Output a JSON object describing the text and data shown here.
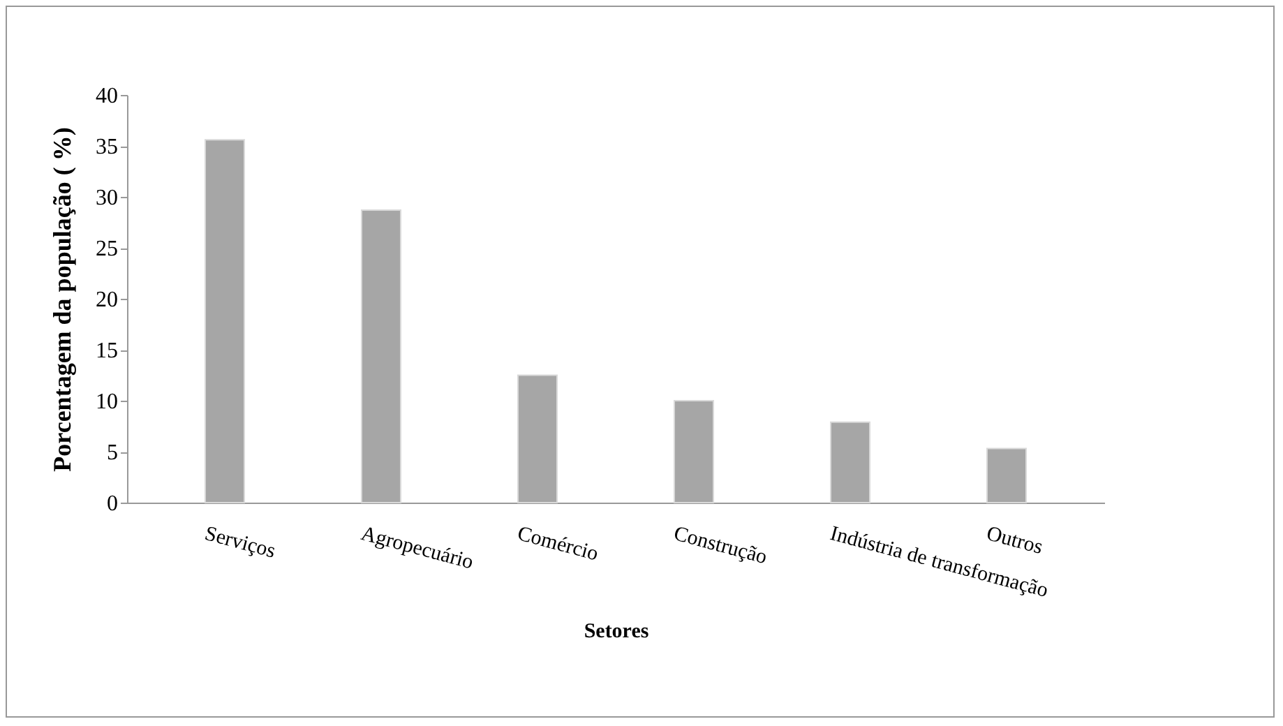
{
  "chart_data": {
    "type": "bar",
    "xlabel": "Setores",
    "ylabel": "Porcentagem da população  ( %)",
    "categories": [
      "Serviços",
      "Agropecuário",
      "Comércio",
      "Construção",
      "Indústria de transformação",
      "Outros"
    ],
    "values": [
      35.6,
      28.7,
      12.5,
      10.0,
      7.9,
      5.3
    ],
    "color": "#a6a6a6",
    "ylim": [
      0,
      40
    ],
    "yticks": [
      0,
      5,
      10,
      15,
      20,
      25,
      30,
      35,
      40
    ],
    "grid": false
  }
}
